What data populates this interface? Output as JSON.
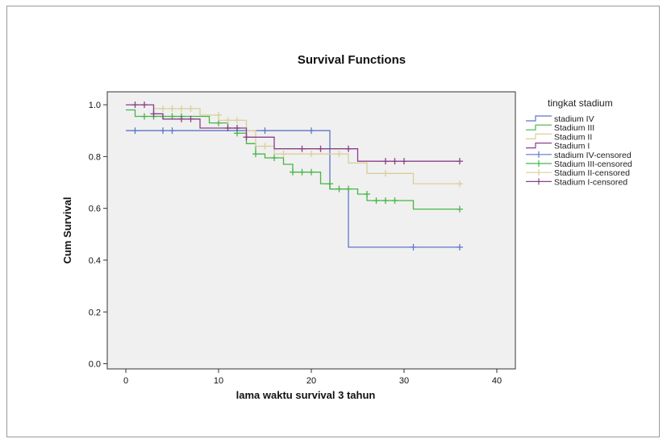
{
  "chart_data": {
    "type": "line",
    "subtype": "kaplan-meier step",
    "title": "Survival Functions",
    "xlabel": "lama waktu survival 3 tahun",
    "ylabel": "Cum Survival",
    "xlim": [
      -2,
      42
    ],
    "ylim": [
      -0.02,
      1.05
    ],
    "xticks": [
      0,
      10,
      20,
      30,
      40
    ],
    "yticks": [
      0.0,
      0.2,
      0.4,
      0.6,
      0.8,
      1.0
    ],
    "ytick_labels": [
      "0.0",
      "0.2",
      "0.4",
      "0.6",
      "0.8",
      "1.0"
    ],
    "grid": false,
    "legend_position": "right",
    "legend_title": "tingkat stadium",
    "legend": [
      "stadium IV",
      "Stadium III",
      "Stadium II",
      "Stadium I",
      "stadium IV-censored",
      "Stadium III-censored",
      "Stadium II-censored",
      "Stadium I-censored"
    ],
    "series": [
      {
        "name": "stadium IV",
        "color": "#5b78c8",
        "steps": [
          [
            0,
            0.9
          ],
          [
            22,
            0.9
          ],
          [
            22,
            0.675
          ],
          [
            24,
            0.675
          ],
          [
            24,
            0.45
          ],
          [
            36,
            0.45
          ]
        ],
        "censored": [
          [
            1,
            0.9
          ],
          [
            4,
            0.9
          ],
          [
            5,
            0.9
          ],
          [
            15,
            0.9
          ],
          [
            20,
            0.9
          ],
          [
            31,
            0.45
          ],
          [
            36,
            0.45
          ]
        ]
      },
      {
        "name": "Stadium III",
        "color": "#46b646",
        "steps": [
          [
            0,
            0.98
          ],
          [
            1,
            0.98
          ],
          [
            1,
            0.955
          ],
          [
            9,
            0.955
          ],
          [
            9,
            0.93
          ],
          [
            11,
            0.93
          ],
          [
            11,
            0.91
          ],
          [
            12,
            0.91
          ],
          [
            12,
            0.89
          ],
          [
            13,
            0.89
          ],
          [
            13,
            0.85
          ],
          [
            14,
            0.85
          ],
          [
            14,
            0.81
          ],
          [
            15,
            0.81
          ],
          [
            15,
            0.795
          ],
          [
            17,
            0.795
          ],
          [
            17,
            0.77
          ],
          [
            18,
            0.77
          ],
          [
            18,
            0.74
          ],
          [
            21,
            0.74
          ],
          [
            21,
            0.695
          ],
          [
            22,
            0.695
          ],
          [
            22,
            0.675
          ],
          [
            25,
            0.675
          ],
          [
            25,
            0.655
          ],
          [
            26,
            0.655
          ],
          [
            26,
            0.63
          ],
          [
            31,
            0.63
          ],
          [
            31,
            0.597
          ],
          [
            36,
            0.597
          ]
        ],
        "censored": [
          [
            2,
            0.955
          ],
          [
            3,
            0.955
          ],
          [
            4,
            0.955
          ],
          [
            5,
            0.955
          ],
          [
            6,
            0.955
          ],
          [
            10,
            0.93
          ],
          [
            12,
            0.89
          ],
          [
            14,
            0.81
          ],
          [
            16,
            0.795
          ],
          [
            18,
            0.74
          ],
          [
            19,
            0.74
          ],
          [
            20,
            0.74
          ],
          [
            22,
            0.695
          ],
          [
            23,
            0.675
          ],
          [
            24,
            0.675
          ],
          [
            26,
            0.655
          ],
          [
            27,
            0.63
          ],
          [
            28,
            0.63
          ],
          [
            29,
            0.63
          ],
          [
            36,
            0.597
          ]
        ]
      },
      {
        "name": "Stadium II",
        "color": "#d8cf9a",
        "steps": [
          [
            0,
            1.0
          ],
          [
            3,
            1.0
          ],
          [
            3,
            0.985
          ],
          [
            8,
            0.985
          ],
          [
            8,
            0.96
          ],
          [
            10,
            0.96
          ],
          [
            10,
            0.94
          ],
          [
            13,
            0.94
          ],
          [
            13,
            0.9
          ],
          [
            14,
            0.9
          ],
          [
            14,
            0.84
          ],
          [
            16,
            0.84
          ],
          [
            16,
            0.81
          ],
          [
            24,
            0.81
          ],
          [
            24,
            0.775
          ],
          [
            26,
            0.775
          ],
          [
            26,
            0.735
          ],
          [
            31,
            0.735
          ],
          [
            31,
            0.695
          ],
          [
            36,
            0.695
          ]
        ],
        "censored": [
          [
            4,
            0.985
          ],
          [
            5,
            0.985
          ],
          [
            6,
            0.985
          ],
          [
            7,
            0.985
          ],
          [
            10,
            0.96
          ],
          [
            11,
            0.94
          ],
          [
            12,
            0.94
          ],
          [
            15,
            0.84
          ],
          [
            17,
            0.81
          ],
          [
            20,
            0.81
          ],
          [
            23,
            0.81
          ],
          [
            28,
            0.735
          ],
          [
            36,
            0.695
          ]
        ]
      },
      {
        "name": "Stadium I",
        "color": "#8b3f8a",
        "steps": [
          [
            0,
            1.0
          ],
          [
            3,
            1.0
          ],
          [
            3,
            0.965
          ],
          [
            4,
            0.965
          ],
          [
            4,
            0.945
          ],
          [
            8,
            0.945
          ],
          [
            8,
            0.91
          ],
          [
            13,
            0.91
          ],
          [
            13,
            0.875
          ],
          [
            16,
            0.875
          ],
          [
            16,
            0.83
          ],
          [
            25,
            0.83
          ],
          [
            25,
            0.782
          ],
          [
            36,
            0.782
          ]
        ],
        "censored": [
          [
            1,
            1.0
          ],
          [
            2,
            1.0
          ],
          [
            3,
            0.965
          ],
          [
            6,
            0.945
          ],
          [
            7,
            0.945
          ],
          [
            11,
            0.91
          ],
          [
            12,
            0.91
          ],
          [
            13,
            0.875
          ],
          [
            19,
            0.83
          ],
          [
            21,
            0.83
          ],
          [
            24,
            0.83
          ],
          [
            28,
            0.782
          ],
          [
            29,
            0.782
          ],
          [
            30,
            0.782
          ],
          [
            36,
            0.782
          ]
        ]
      }
    ]
  }
}
